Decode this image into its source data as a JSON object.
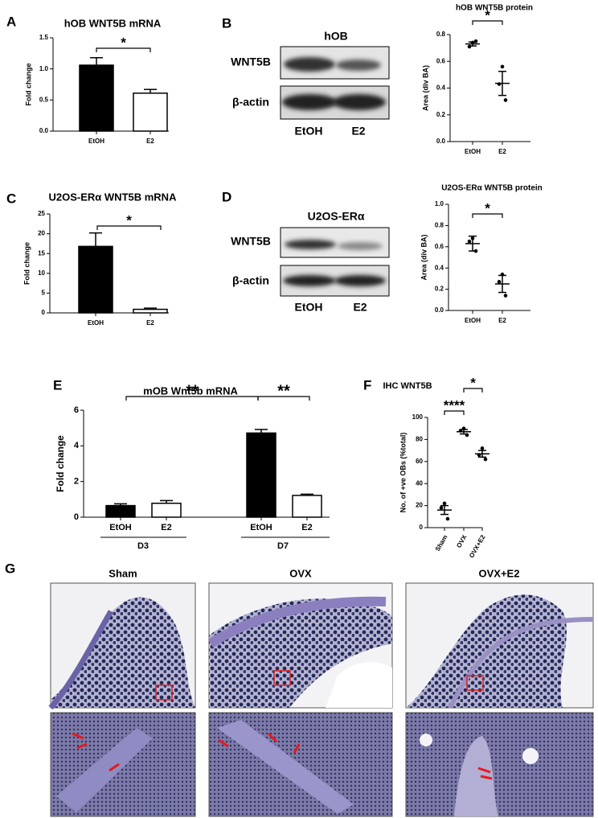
{
  "panel_labels": [
    "A",
    "B",
    "C",
    "D",
    "E",
    "F",
    "G"
  ],
  "blots": [
    {
      "title": "hOB",
      "rows": [
        "WNT5B",
        "β-actin"
      ],
      "lanes": [
        "EtOH",
        "E2"
      ]
    },
    {
      "title": "U2OS-ERα",
      "rows": [
        "WNT5B",
        "β-actin"
      ],
      "lanes": [
        "EtOH",
        "E2"
      ]
    }
  ],
  "histology": {
    "columns": [
      "Sham",
      "OVX",
      "OVX+E2"
    ]
  },
  "chart_data": [
    {
      "type": "bar",
      "title": "hOB WNT5B mRNA",
      "ylabel": "Fold change",
      "categories": [
        "EtOH",
        "E2"
      ],
      "values": [
        1.06,
        0.61
      ],
      "errors": [
        0.12,
        0.06
      ],
      "colors": [
        "#000000",
        "#ffffff"
      ],
      "ylim": [
        0,
        1.5
      ],
      "yticks": [
        {
          "value": 0,
          "label": "0.0"
        },
        0.5,
        {
          "value": 1,
          "label": "1.0"
        },
        1.5
      ],
      "annotations": [
        "*"
      ]
    },
    {
      "type": "dotplot",
      "title": "hOB WNT5B protein",
      "ylabel": "Area (div BA)",
      "categories": [
        "EtOH",
        "E2"
      ],
      "points": [
        [
          0.74,
          0.71,
          0.75
        ],
        [
          0.56,
          0.43,
          0.31
        ]
      ],
      "means": [
        0.73,
        0.435
      ],
      "errors": [
        0.015,
        0.09
      ],
      "ylim": [
        0,
        0.8
      ],
      "yticks": [
        {
          "value": 0,
          "label": "0.0"
        },
        0.2,
        0.4,
        0.6,
        0.8
      ],
      "annotations": [
        "*"
      ]
    },
    {
      "type": "bar",
      "title": "U2OS-ERα WNT5B mRNA",
      "ylabel": "Fold change",
      "categories": [
        "EtOH",
        "E2"
      ],
      "values": [
        16.8,
        0.9
      ],
      "errors": [
        3.4,
        0.3
      ],
      "colors": [
        "#000000",
        "#ffffff"
      ],
      "ylim": [
        0,
        25
      ],
      "yticks": [
        0,
        5,
        10,
        15,
        20,
        25
      ],
      "annotations": [
        "*"
      ]
    },
    {
      "type": "dotplot",
      "title": "U2OS-ERα WNT5B protein",
      "ylabel": "Area (div BA)",
      "categories": [
        "EtOH",
        "E2"
      ],
      "points": [
        [
          0.68,
          0.65,
          0.56
        ],
        [
          0.34,
          0.27,
          0.14
        ]
      ],
      "means": [
        0.63,
        0.25
      ],
      "errors": [
        0.07,
        0.08
      ],
      "ylim": [
        0,
        1
      ],
      "yticks": [
        {
          "value": 0,
          "label": "0.0"
        },
        0.2,
        0.4,
        0.6,
        0.8,
        {
          "value": 1,
          "label": "1.0"
        }
      ],
      "annotations": [
        "*"
      ]
    },
    {
      "type": "bar",
      "title": "mOB Wnt5b mRNA",
      "ylabel": "Fold change",
      "categories": [
        "EtOH",
        "E2",
        "EtOH",
        "E2"
      ],
      "groups": [
        "D3",
        "D7"
      ],
      "values": [
        0.65,
        0.78,
        4.72,
        1.22
      ],
      "errors": [
        0.1,
        0.15,
        0.2,
        0.07
      ],
      "colors": [
        "#000000",
        "#ffffff",
        "#000000",
        "#ffffff"
      ],
      "ylim": [
        0,
        6
      ],
      "yticks": [
        0,
        2,
        4,
        6
      ],
      "annotations": [
        "**",
        "**"
      ]
    },
    {
      "type": "dotplot",
      "title": "IHC WNT5B",
      "ylabel": "No. of +ve OBs (%total)",
      "categories": [
        "Sham",
        "OVX",
        "OVX+E2"
      ],
      "points": [
        [
          22,
          18,
          8
        ],
        [
          90,
          88,
          84
        ],
        [
          72,
          66,
          62
        ]
      ],
      "means": [
        16,
        87,
        67
      ],
      "errors": [
        4,
        2,
        3
      ],
      "ylim": [
        0,
        100
      ],
      "yticks": [
        0,
        20,
        40,
        60,
        80,
        100
      ],
      "annotations": [
        "****",
        "*"
      ]
    }
  ]
}
